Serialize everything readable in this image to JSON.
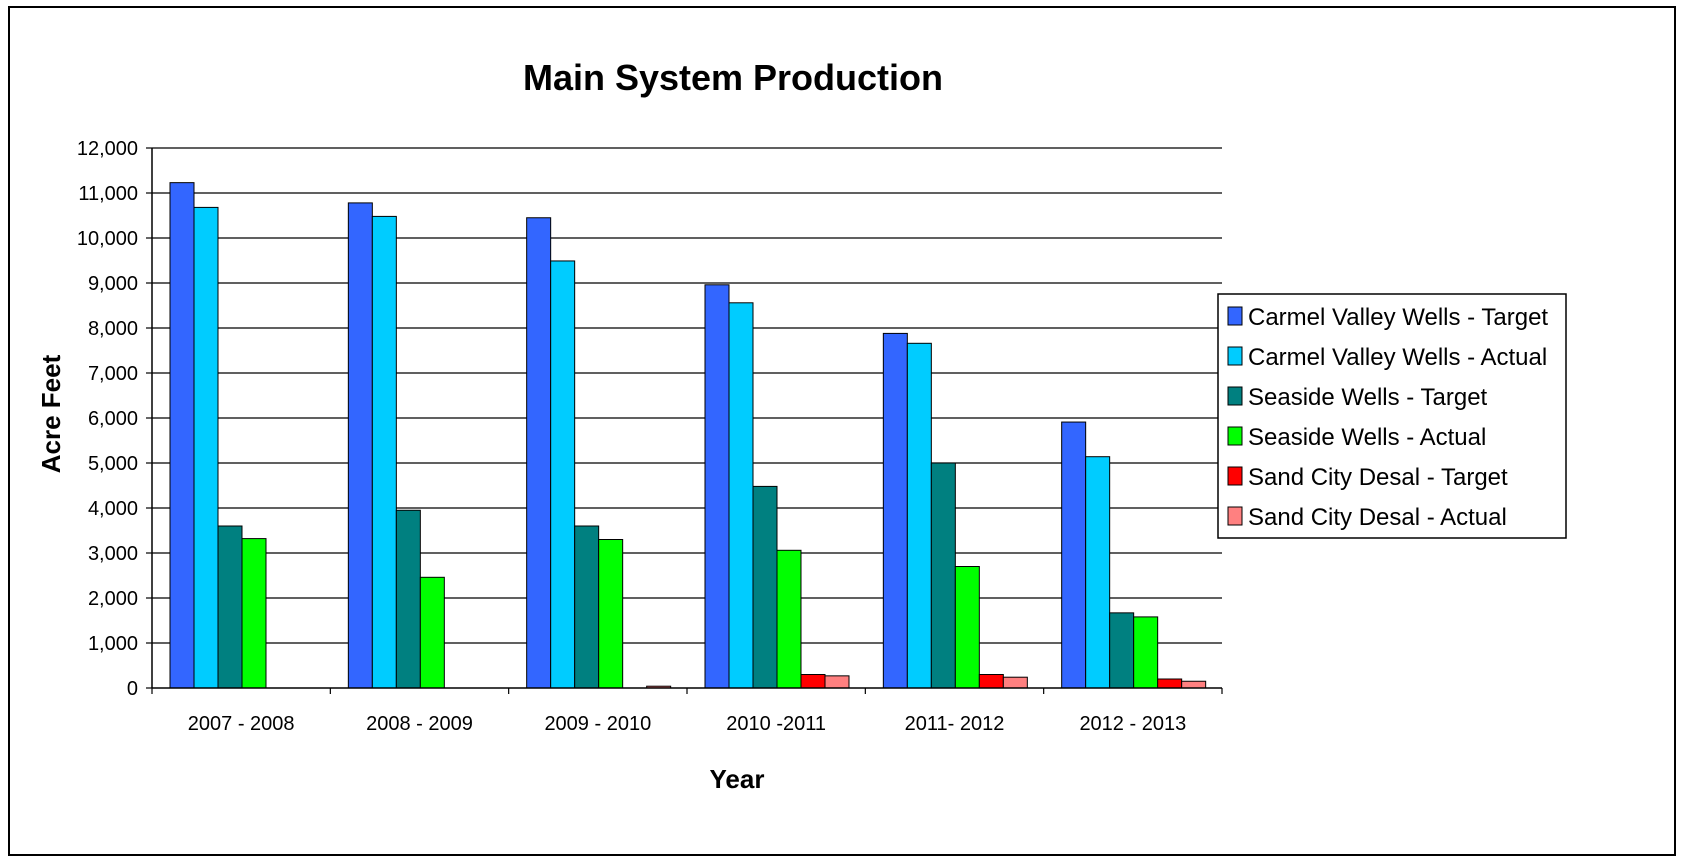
{
  "chart_data": {
    "type": "bar",
    "title": "Main System Production",
    "xlabel": "Year",
    "ylabel": "Acre Feet",
    "ylim": [
      0,
      12000
    ],
    "yticks": [
      "0",
      "1,000",
      "2,000",
      "3,000",
      "4,000",
      "5,000",
      "6,000",
      "7,000",
      "8,000",
      "9,000",
      "10,000",
      "11,000",
      "12,000"
    ],
    "grid": true,
    "legend_position": "right",
    "categories": [
      "2007 - 2008",
      "2008 - 2009",
      "2009 - 2010",
      "2010 -2011",
      "2011- 2012",
      "2012 - 2013"
    ],
    "series": [
      {
        "name": "Carmel Valley Wells - Target",
        "color": "#3366ff",
        "values": [
          11230,
          10780,
          10450,
          8960,
          7880,
          5910
        ]
      },
      {
        "name": "Carmel Valley Wells - Actual",
        "color": "#00ccff",
        "values": [
          10680,
          10480,
          9490,
          8560,
          7660,
          5140
        ]
      },
      {
        "name": "Seaside Wells - Target",
        "color": "#008080",
        "values": [
          3600,
          3950,
          3600,
          4480,
          5000,
          1670
        ]
      },
      {
        "name": "Seaside Wells - Actual",
        "color": "#00ff00",
        "values": [
          3320,
          2460,
          3300,
          3060,
          2700,
          1580
        ]
      },
      {
        "name": "Sand City Desal - Target",
        "color": "#ff0000",
        "values": [
          0,
          0,
          0,
          300,
          300,
          200
        ]
      },
      {
        "name": "Sand City Desal - Actual",
        "color": "#ff8080",
        "values": [
          0,
          0,
          40,
          270,
          240,
          150
        ]
      }
    ]
  }
}
